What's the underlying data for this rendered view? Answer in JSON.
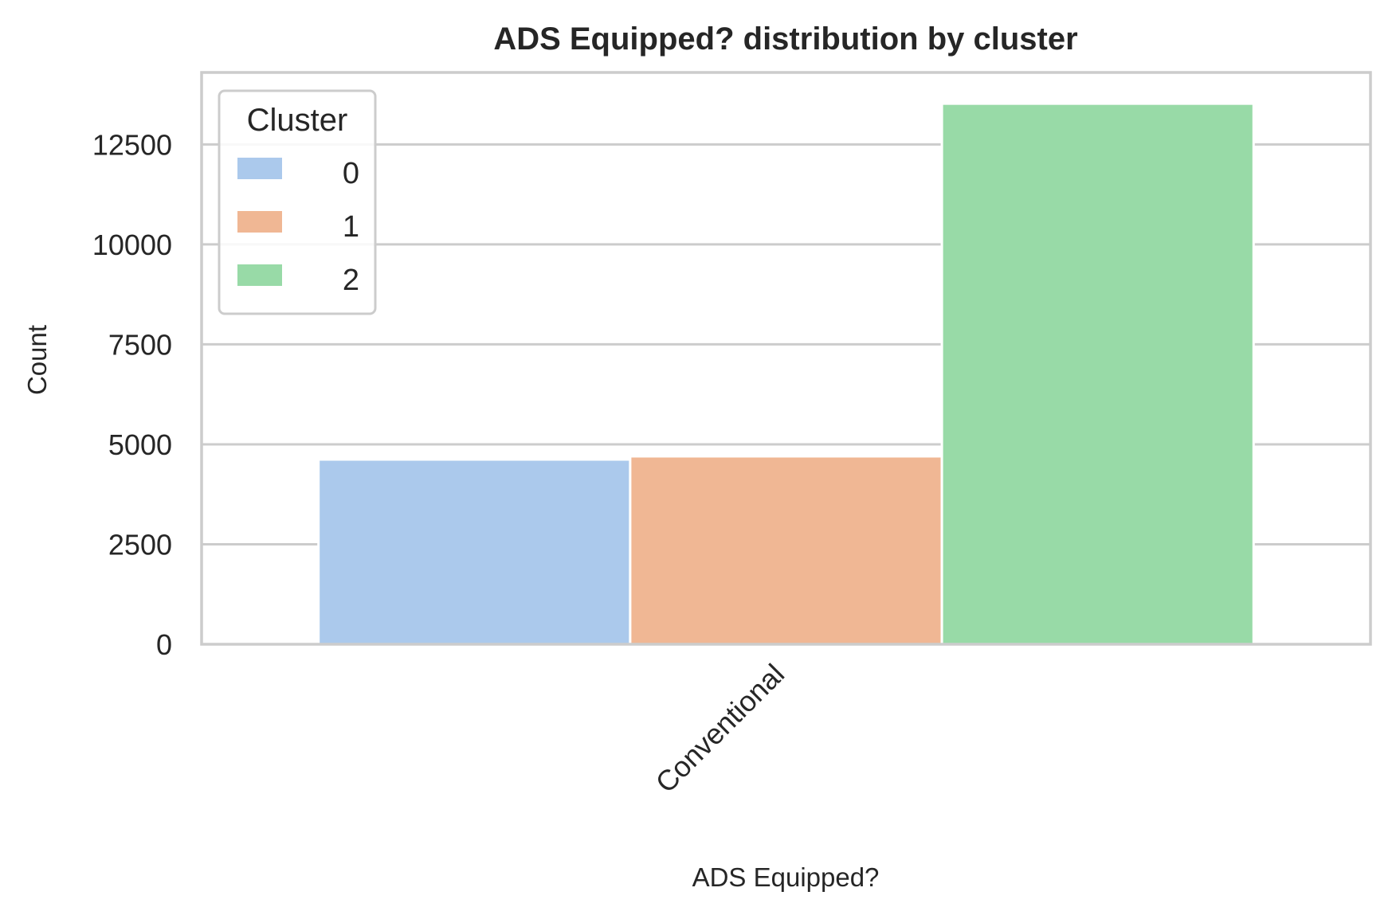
{
  "chart_data": {
    "type": "bar",
    "title": "ADS Equipped? distribution by cluster",
    "xlabel": "ADS Equipped?",
    "ylabel": "Count",
    "categories": [
      "Conventional"
    ],
    "series": [
      {
        "name": "0",
        "values": [
          4620
        ],
        "color": "#abc9ec"
      },
      {
        "name": "1",
        "values": [
          4700
        ],
        "color": "#f0b794"
      },
      {
        "name": "2",
        "values": [
          13520
        ],
        "color": "#98daa7"
      }
    ],
    "ylim": [
      0,
      14300
    ],
    "yticks": [
      0,
      2500,
      5000,
      7500,
      10000,
      12500
    ],
    "ytick_labels": [
      "0",
      "2500",
      "5000",
      "7500",
      "10000",
      "12500"
    ],
    "grid": true,
    "legend": {
      "title": "Cluster",
      "position": "top-left"
    }
  }
}
